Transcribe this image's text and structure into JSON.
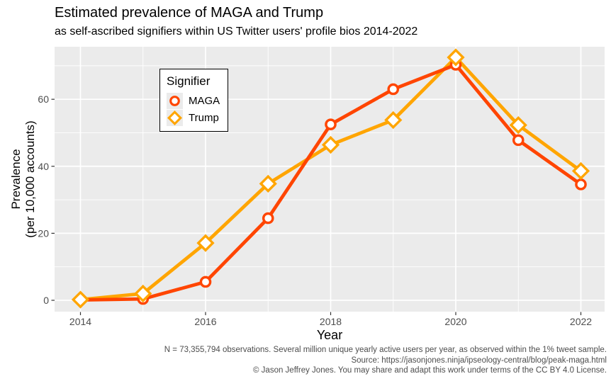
{
  "header": {
    "title": "Estimated prevalence of MAGA and Trump",
    "subtitle": "as self-ascribed signifiers within US Twitter users' profile bios 2014-2022"
  },
  "axes": {
    "x": {
      "label": "Year",
      "ticks": [
        2014,
        2016,
        2018,
        2020,
        2022
      ],
      "minor": [
        2015,
        2017,
        2019,
        2021
      ]
    },
    "y": {
      "label_line1": "Prevalence",
      "label_line2": "(per 10,000 accounts)",
      "ticks": [
        0,
        20,
        40,
        60
      ],
      "minor": [
        10,
        30,
        50,
        70
      ]
    }
  },
  "legend": {
    "title": "Signifier",
    "items": [
      {
        "label": "MAGA",
        "marker": "circle-icon",
        "color": "#FF4500"
      },
      {
        "label": "Trump",
        "marker": "diamond-icon",
        "color": "#FFA500"
      }
    ]
  },
  "caption": {
    "lines": [
      "N = 73,355,794 observations. Several million unique yearly active users per year, as observed within the 1% tweet sample.",
      "Source: https://jasonjones.ninja/ipseology-central/blog/peak-maga.html",
      "© Jason Jeffrey Jones. You may share and adapt this work under terms of the CC BY 4.0 License."
    ]
  },
  "colors": {
    "maga": "#FF4500",
    "trump": "#FFA500",
    "panel_bg": "#EBEBEB",
    "grid": "#FFFFFF",
    "tick_mark": "#333333",
    "tick_text": "#4D4D4D",
    "caption_text": "#4D4D4D",
    "legend_key_bg": "#EBEBEB"
  },
  "chart_data": {
    "type": "line",
    "title": "Estimated prevalence of MAGA and Trump",
    "subtitle": "as self-ascribed signifiers within US Twitter users' profile bios 2014-2022",
    "xlabel": "Year",
    "ylabel": "Prevalence (per 10,000 accounts)",
    "x": [
      2014,
      2015,
      2016,
      2017,
      2018,
      2019,
      2020,
      2021,
      2022
    ],
    "series": [
      {
        "name": "MAGA",
        "marker": "circle",
        "color": "#FF4500",
        "values": [
          0.1,
          0.4,
          5.5,
          24.5,
          52.5,
          63.0,
          70.3,
          47.8,
          34.6
        ]
      },
      {
        "name": "Trump",
        "marker": "diamond",
        "color": "#FFA500",
        "values": [
          0.2,
          2.0,
          17.1,
          34.8,
          46.4,
          53.8,
          72.5,
          52.3,
          38.6
        ]
      }
    ],
    "xlim": [
      2013.6,
      2022.4
    ],
    "ylim": [
      -3.4,
      75.7
    ],
    "grid": true,
    "legend_position": "inside top-left"
  }
}
